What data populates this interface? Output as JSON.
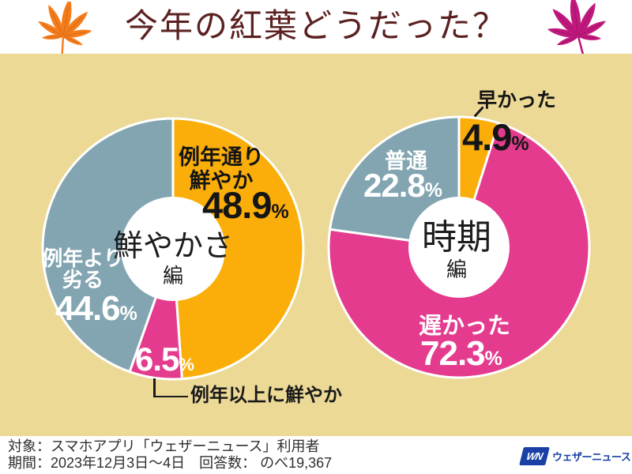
{
  "header": {
    "title": "今年の紅葉どうだった？"
  },
  "decor": {
    "background_color": "#ecd996",
    "title_color": "#5b2121",
    "leaf_left_color": "#f57c1b",
    "leaf_right_color": "#c0187d"
  },
  "chart_data": [
    {
      "type": "pie",
      "variant": "donut",
      "title": "鮮やかさ",
      "title_suffix": "編",
      "unit": "%",
      "direction": "clockwise",
      "start_angle_deg": 0,
      "segments": [
        {
          "label": "例年通り鮮やか",
          "label_lines": [
            "例年通り",
            "鮮やか"
          ],
          "value": 48.9,
          "display": "48.9",
          "color": "#fbae09",
          "text_color": "#151515"
        },
        {
          "label": "例年以上に鮮やか",
          "label_lines": [
            "例年以上に鮮やか"
          ],
          "value": 6.5,
          "display": "6.5",
          "color": "#e43b8e",
          "text_color": "#ffffff"
        },
        {
          "label": "例年より劣る",
          "label_lines": [
            "例年より",
            "劣る"
          ],
          "value": 44.6,
          "display": "44.6",
          "color": "#82a5b1",
          "text_color": "#ffffff"
        }
      ]
    },
    {
      "type": "pie",
      "variant": "donut",
      "title": "時期",
      "title_suffix": "編",
      "unit": "%",
      "direction": "clockwise",
      "start_angle_deg": 0,
      "segments": [
        {
          "label": "早かった",
          "label_lines": [
            "早かった"
          ],
          "value": 4.9,
          "display": "4.9",
          "color": "#fbae09",
          "text_color": "#151515"
        },
        {
          "label": "遅かった",
          "label_lines": [
            "遅かった"
          ],
          "value": 72.3,
          "display": "72.3",
          "color": "#e43b8e",
          "text_color": "#ffffff"
        },
        {
          "label": "普通",
          "label_lines": [
            "普通"
          ],
          "value": 22.8,
          "display": "22.8",
          "color": "#82a5b1",
          "text_color": "#ffffff"
        }
      ]
    }
  ],
  "footer": {
    "line1": "対象：スマホアプリ「ウェザーニュース」利用者",
    "line2": "期間：2023年12月3日～4日　回答数： のべ19,367",
    "logo": {
      "mark": "WN",
      "text": "ウェザーニュース",
      "color": "#1a3fa5"
    }
  }
}
